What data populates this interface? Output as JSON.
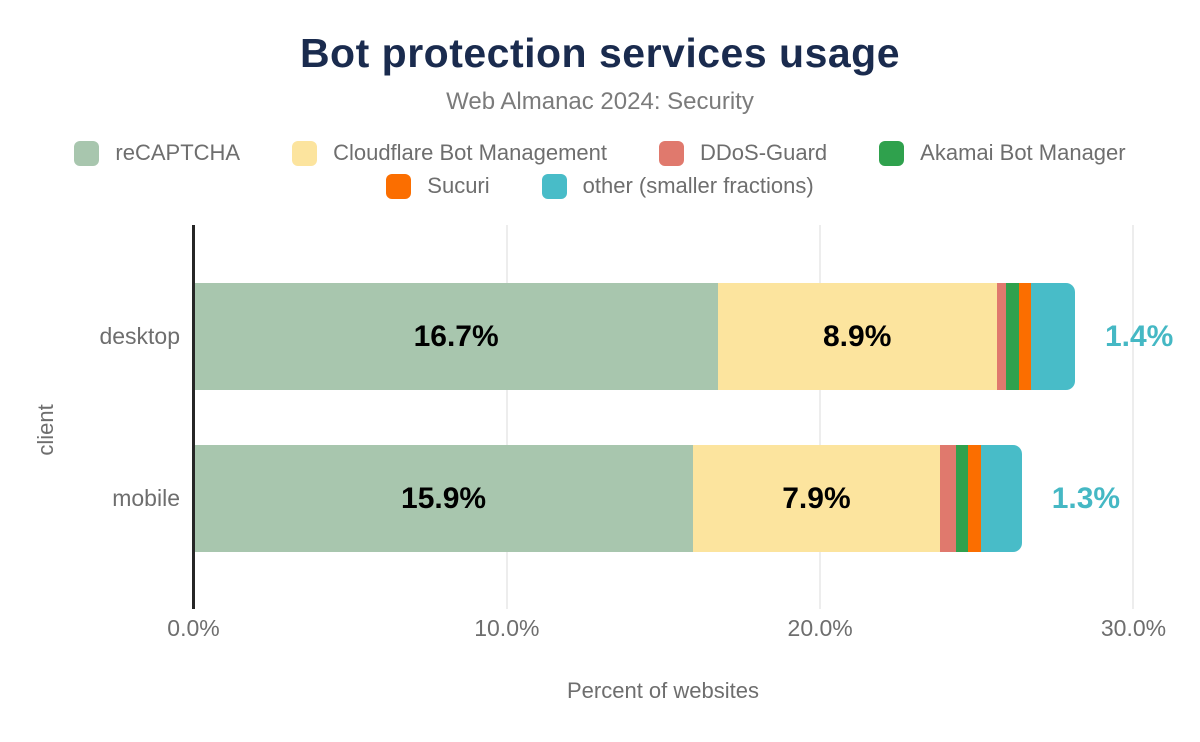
{
  "header": {
    "title": "Bot protection services usage",
    "subtitle": "Web Almanac 2024: Security"
  },
  "colors": {
    "title_text": "#1a2b4e",
    "subtitle_text": "#7b7b7b",
    "muted_text": "#6e6e6e",
    "axis_line": "#262626",
    "gridline": "#ededed",
    "inside_label_text": "#000000",
    "outside_label_text": "#45b8c4"
  },
  "chart_data": {
    "type": "bar",
    "orientation": "horizontal",
    "stacked": true,
    "title": "Bot protection services usage",
    "subtitle": "Web Almanac 2024: Security",
    "categories": [
      "desktop",
      "mobile"
    ],
    "series": [
      {
        "name": "reCAPTCHA",
        "color": "#a8c6ae",
        "values": [
          16.7,
          15.9
        ]
      },
      {
        "name": "Cloudflare Bot Management",
        "color": "#fce49e",
        "values": [
          8.9,
          7.9
        ]
      },
      {
        "name": "DDoS-Guard",
        "color": "#e0796d",
        "values": [
          0.3,
          0.5
        ]
      },
      {
        "name": "Akamai Bot Manager",
        "color": "#2fa14d",
        "values": [
          0.4,
          0.4
        ]
      },
      {
        "name": "Sucuri",
        "color": "#fb6e00",
        "values": [
          0.4,
          0.4
        ]
      },
      {
        "name": "other (smaller fractions)",
        "color": "#48bcc8",
        "values": [
          1.4,
          1.3
        ]
      }
    ],
    "value_labels": [
      [
        "16.7%",
        "8.9%",
        "",
        "",
        "",
        ""
      ],
      [
        "15.9%",
        "7.9%",
        "",
        "",
        "",
        ""
      ]
    ],
    "end_labels": [
      "1.4%",
      "1.3%"
    ],
    "xlabel": "Percent of websites",
    "ylabel": "client",
    "x_ticks": [
      "0.0%",
      "10.0%",
      "20.0%",
      "30.0%"
    ],
    "x_tick_values": [
      0,
      10,
      20,
      30
    ],
    "xlim": [
      0,
      30
    ],
    "grid": true,
    "legend_position": "top",
    "legend_rows": [
      [
        0,
        1,
        2,
        3
      ],
      [
        4,
        5
      ]
    ]
  }
}
